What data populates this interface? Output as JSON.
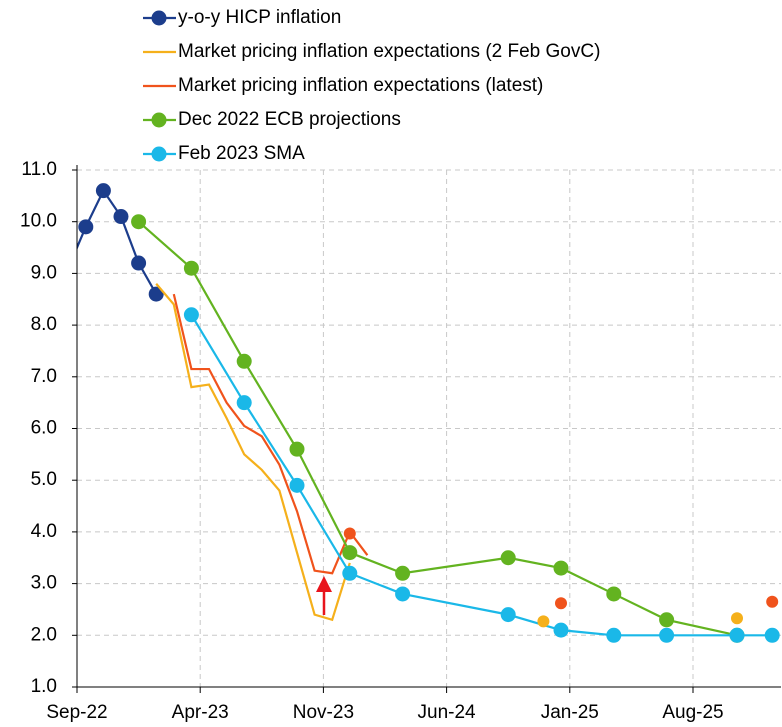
{
  "chart_data": {
    "type": "line",
    "xlim": [
      "Sep-22",
      "Jan-26"
    ],
    "xticks": [
      "Sep-22",
      "Apr-23",
      "Nov-23",
      "Jun-24",
      "Jan-25",
      "Aug-25"
    ],
    "ylim": [
      1,
      11
    ],
    "yticks": [
      {
        "value": 1,
        "label": "1.0"
      },
      {
        "value": 2,
        "label": "2.0"
      },
      {
        "value": 3,
        "label": "3.0"
      },
      {
        "value": 4,
        "label": "4.0"
      },
      {
        "value": 5,
        "label": "5.0"
      },
      {
        "value": 6,
        "label": "6.0"
      },
      {
        "value": 7,
        "label": "7.0"
      },
      {
        "value": 8,
        "label": "8.0"
      },
      {
        "value": 9,
        "label": "9.0"
      },
      {
        "value": 10,
        "label": "10.0"
      },
      {
        "value": 11,
        "label": "11.0"
      }
    ],
    "grid": true,
    "legend": "top",
    "series": [
      {
        "name": "y-o-y HICP inflation",
        "color": "#1c3d8c",
        "marker": true,
        "x": [
          "Aug-22",
          "Sep-22",
          "Oct-22",
          "Nov-22",
          "Dec-22",
          "Jan-23"
        ],
        "values": [
          9.1,
          9.9,
          10.6,
          10.1,
          9.2,
          8.6
        ]
      },
      {
        "name": "Market pricing inflation expectations (2 Feb GovC)",
        "color": "#f5b01b",
        "marker": false,
        "x": [
          "Jan-23",
          "Feb-23",
          "Mar-23",
          "Apr-23",
          "May-23",
          "Jun-23",
          "Jul-23",
          "Aug-23",
          "Sep-23",
          "Oct-23",
          "Nov-23",
          "Dec-23"
        ],
        "values": [
          8.8,
          8.4,
          6.8,
          6.85,
          6.2,
          5.5,
          5.2,
          4.8,
          3.6,
          2.4,
          2.3,
          3.4
        ]
      },
      {
        "name": "Market pricing inflation expectations (latest)",
        "color": "#f0531c",
        "marker": false,
        "x": [
          "Feb-23",
          "Mar-23",
          "Apr-23",
          "May-23",
          "Jun-23",
          "Jul-23",
          "Aug-23",
          "Sep-23",
          "Oct-23",
          "Nov-23",
          "Dec-23",
          "Jan-24"
        ],
        "values": [
          8.6,
          7.15,
          7.15,
          6.5,
          6.05,
          5.85,
          5.3,
          4.4,
          3.25,
          3.2,
          4.0,
          3.55
        ]
      },
      {
        "name": "Dec 2022 ECB projections",
        "color": "#63b320",
        "marker": true,
        "x": [
          "Dec-22",
          "Mar-23",
          "Jun-23",
          "Sep-23",
          "Dec-23",
          "Mar-24",
          "Sep-24",
          "Dec-24",
          "Mar-25",
          "Jun-25",
          "Oct-25"
        ],
        "values": [
          10.0,
          9.1,
          7.3,
          5.6,
          3.6,
          3.2,
          3.5,
          3.3,
          2.8,
          2.3,
          2.0
        ]
      },
      {
        "name": "Feb 2023 SMA",
        "color": "#1ab8e8",
        "marker": true,
        "x": [
          "Mar-23",
          "Jun-23",
          "Sep-23",
          "Dec-23",
          "Mar-24",
          "Sep-24",
          "Dec-24",
          "Mar-25",
          "Jun-25",
          "Oct-25",
          "Dec-25"
        ],
        "values": [
          8.2,
          6.5,
          4.9,
          3.2,
          2.8,
          2.4,
          2.1,
          2.0,
          2.0,
          2.0,
          2.0
        ]
      },
      {
        "color": "#f5b01b",
        "marker": "dot",
        "x": [
          "Nov-24",
          "Oct-25"
        ],
        "values": [
          2.27,
          2.33
        ]
      },
      {
        "color": "#f0531c",
        "marker": "dot",
        "x": [
          "Dec-23",
          "Dec-24",
          "Dec-25"
        ],
        "values": [
          3.97,
          2.62,
          2.65
        ]
      }
    ]
  }
}
